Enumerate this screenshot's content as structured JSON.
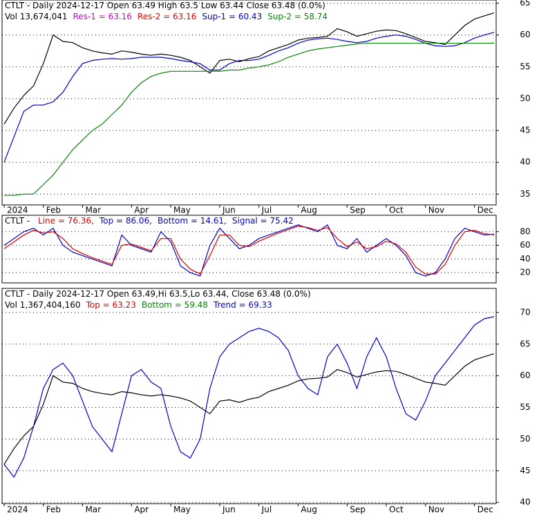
{
  "chart_data": [
    {
      "type": "line",
      "header": [
        [
          {
            "text": "CTLT - Daily 2024-12-17 Open 63.49  High 63.5  Low 63.44  Close 63.48 (0.0%)",
            "color": "#000000"
          }
        ],
        [
          {
            "text": "Vol 13,674,041",
            "color": "#000000"
          },
          {
            "text": "Res-1 = 63.16",
            "color": "#cc00cc"
          },
          {
            "text": "Res-2 = 63.16",
            "color": "#dd0000"
          },
          {
            "text": "Sup-1 = 60.43",
            "color": "#0000cc"
          },
          {
            "text": "Sup-2 = 58.74",
            "color": "#008800"
          }
        ]
      ],
      "categories": [
        "2024",
        null,
        null,
        null,
        "Feb",
        null,
        null,
        null,
        "Mar",
        null,
        null,
        null,
        null,
        "Apr",
        null,
        null,
        null,
        "May",
        null,
        null,
        null,
        null,
        "Jun",
        null,
        null,
        null,
        "Jul",
        null,
        null,
        null,
        "Aug",
        null,
        null,
        null,
        null,
        "Sep",
        null,
        null,
        null,
        "Oct",
        null,
        null,
        null,
        "Nov",
        null,
        null,
        null,
        null,
        "Dec",
        null,
        null
      ],
      "ylim": [
        33.3,
        65.5
      ],
      "yticks": [
        35,
        40,
        45,
        50,
        55,
        60,
        65
      ],
      "grid": true,
      "series": [
        {
          "color": "#000000",
          "values": [
            46.0,
            48.5,
            50.5,
            52.0,
            55.5,
            60.0,
            59.0,
            58.8,
            58.0,
            57.5,
            57.2,
            57.0,
            57.5,
            57.3,
            57.0,
            56.8,
            57.0,
            56.8,
            56.5,
            56.0,
            55.0,
            54.0,
            56.0,
            56.2,
            55.8,
            56.3,
            56.6,
            57.5,
            58.0,
            58.5,
            59.2,
            59.5,
            59.6,
            59.8,
            61.0,
            60.5,
            59.8,
            60.2,
            60.6,
            60.8,
            60.7,
            60.2,
            59.6,
            59.0,
            58.8,
            58.5,
            60.0,
            61.5,
            62.5,
            63.0,
            63.48
          ]
        },
        {
          "color": "#0000cc",
          "values": [
            40,
            44,
            48,
            49,
            49,
            49.5,
            51,
            53.5,
            55.5,
            56,
            56.2,
            56.3,
            56.2,
            56.3,
            56.5,
            56.5,
            56.5,
            56.3,
            56,
            55.8,
            55.5,
            54.5,
            54.5,
            55.5,
            56,
            56,
            56.2,
            56.8,
            57.5,
            58,
            58.7,
            59.2,
            59.4,
            59.5,
            59.3,
            59,
            58.8,
            59,
            59.5,
            59.8,
            60,
            59.8,
            59.3,
            58.7,
            58.3,
            58.2,
            58.3,
            58.8,
            59.5,
            60,
            60.43
          ]
        },
        {
          "color": "#008800",
          "values": [
            34.8,
            34.8,
            35,
            35,
            36.5,
            38,
            40,
            42,
            43.5,
            45,
            46,
            47.5,
            49,
            51,
            52.5,
            53.5,
            54,
            54.3,
            54.3,
            54.3,
            54.3,
            54.3,
            54.3,
            54.5,
            54.5,
            54.8,
            55,
            55.3,
            55.8,
            56.5,
            57,
            57.5,
            57.8,
            58,
            58.2,
            58.4,
            58.6,
            58.7,
            58.7,
            58.7,
            58.7,
            58.7,
            58.7,
            58.7,
            58.7,
            58.7,
            58.7,
            58.7,
            58.7,
            58.7,
            58.74
          ]
        }
      ]
    },
    {
      "type": "line",
      "header": [
        [
          {
            "text": "CTLT - ",
            "color": "#000000"
          },
          {
            "text": "Line = 76.36,",
            "color": "#dd0000"
          },
          {
            "text": "Top = 86.06,",
            "color": "#0000cc"
          },
          {
            "text": "Bottom = 14.61,",
            "color": "#0000cc"
          },
          {
            "text": "Signal = 75.42",
            "color": "#0000cc"
          }
        ]
      ],
      "ylim": [
        5,
        104
      ],
      "yticks": [
        20,
        40,
        60,
        80
      ],
      "grid": true,
      "series": [
        {
          "color": "#0000cc",
          "values": [
            60,
            70,
            80,
            85,
            75,
            85,
            60,
            50,
            45,
            40,
            35,
            30,
            75,
            60,
            55,
            50,
            80,
            65,
            30,
            20,
            15,
            60,
            85,
            70,
            55,
            60,
            70,
            75,
            80,
            85,
            90,
            85,
            80,
            90,
            60,
            55,
            70,
            50,
            60,
            70,
            60,
            45,
            20,
            15,
            20,
            40,
            70,
            85,
            80,
            75,
            76.36
          ]
        },
        {
          "color": "#dd0000",
          "values": [
            55,
            65,
            75,
            82,
            78,
            80,
            70,
            55,
            48,
            42,
            37,
            32,
            60,
            62,
            57,
            52,
            70,
            70,
            40,
            25,
            18,
            45,
            75,
            75,
            60,
            58,
            66,
            72,
            78,
            83,
            88,
            86,
            82,
            86,
            70,
            58,
            65,
            55,
            58,
            66,
            62,
            50,
            28,
            18,
            18,
            32,
            60,
            80,
            82,
            77,
            75.42
          ]
        }
      ]
    },
    {
      "type": "line",
      "header": [
        [
          {
            "text": "CTLT - Daily 2024-12-17 Open 63.49,Hi 63.5,Lo 63.44, Close 63.48 (0.0%)",
            "color": "#000000"
          }
        ],
        [
          {
            "text": "Vol 1,367,404,160",
            "color": "#000000"
          },
          {
            "text": "Top = 63.23",
            "color": "#dd0000"
          },
          {
            "text": "Bottom = 59.48",
            "color": "#008800"
          },
          {
            "text": "Trend = 69.33",
            "color": "#0000cc"
          }
        ]
      ],
      "categories": [
        "2024",
        null,
        null,
        null,
        "Feb",
        null,
        null,
        null,
        "Mar",
        null,
        null,
        null,
        null,
        "Apr",
        null,
        null,
        null,
        "May",
        null,
        null,
        null,
        null,
        "Jun",
        null,
        null,
        null,
        "Jul",
        null,
        null,
        null,
        "Aug",
        null,
        null,
        null,
        null,
        "Sep",
        null,
        null,
        null,
        "Oct",
        null,
        null,
        null,
        "Nov",
        null,
        null,
        null,
        null,
        "Dec",
        null,
        null
      ],
      "ylim": [
        39.8,
        73.8
      ],
      "yticks": [
        40,
        45,
        50,
        55,
        60,
        65,
        70
      ],
      "grid": true,
      "series": [
        {
          "color": "#000000",
          "values": [
            46.0,
            48.5,
            50.5,
            52.0,
            55.5,
            60.0,
            59.0,
            58.8,
            58.0,
            57.5,
            57.2,
            57.0,
            57.5,
            57.3,
            57.0,
            56.8,
            57.0,
            56.8,
            56.5,
            56.0,
            55.0,
            54.0,
            56.0,
            56.2,
            55.8,
            56.3,
            56.6,
            57.5,
            58.0,
            58.5,
            59.2,
            59.5,
            59.6,
            59.8,
            61.0,
            60.5,
            59.8,
            60.2,
            60.6,
            60.8,
            60.7,
            60.2,
            59.6,
            59.0,
            58.8,
            58.5,
            60.0,
            61.5,
            62.5,
            63.0,
            63.48
          ]
        },
        {
          "color": "#0000cc",
          "values": [
            46,
            44,
            47,
            52,
            58,
            61,
            62,
            60,
            56,
            52,
            50,
            48,
            54,
            60,
            61,
            59,
            58,
            52,
            48,
            47,
            50,
            58,
            63,
            65,
            66,
            67,
            67.5,
            67,
            66,
            64,
            60,
            58,
            57,
            63,
            65,
            62,
            58,
            63,
            66,
            63,
            58,
            54,
            53,
            56,
            60,
            62,
            64,
            66,
            68,
            69,
            69.33
          ]
        }
      ]
    }
  ]
}
